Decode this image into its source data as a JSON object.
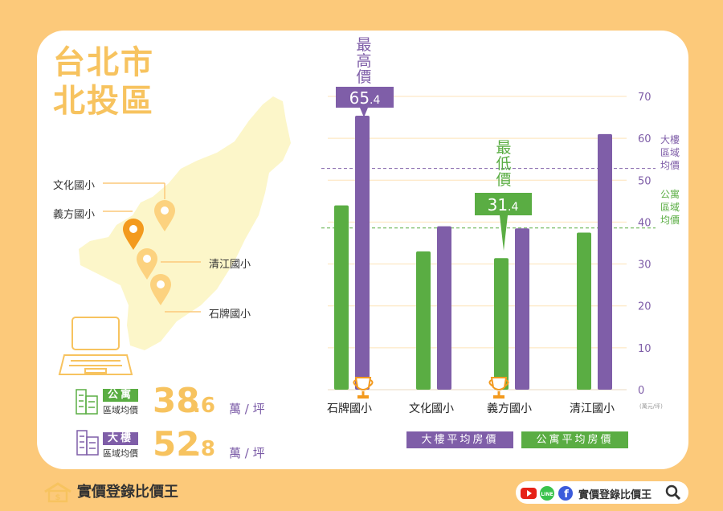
{
  "title": {
    "line1": "台北市",
    "line2": "北投區"
  },
  "map_labels": {
    "wenhua": "文化國小",
    "yifang": "義方國小",
    "qingjiang": "清江國小",
    "shipai": "石牌國小"
  },
  "stats": {
    "apartment": {
      "tag": "公寓",
      "sub": "區域均價",
      "value_int": "38",
      "value_dec": ".6",
      "unit": "萬 / 坪"
    },
    "building": {
      "tag": "大樓",
      "sub": "區域均價",
      "value_int": "52",
      "value_dec": ".8",
      "unit": "萬 / 坪"
    }
  },
  "colors": {
    "green": "#5aad43",
    "purple": "#7f5ea8",
    "yellow": "#f7c35f",
    "orange": "#f39a1e"
  },
  "chart_data": {
    "type": "bar",
    "categories": [
      "石牌國小",
      "文化國小",
      "義方國小",
      "清江國小"
    ],
    "series": [
      {
        "name": "公寓平均房價",
        "values": [
          44,
          33,
          31.4,
          37.5
        ]
      },
      {
        "name": "大樓平均房價",
        "values": [
          65.4,
          39,
          38.5,
          61
        ]
      }
    ],
    "ylim": [
      0,
      70
    ],
    "yticks": [
      "0",
      "10",
      "20",
      "30",
      "40",
      "50",
      "60",
      "70"
    ],
    "unit_label": "(萬元/坪)",
    "ref_lines": [
      {
        "name": "大樓區域均價",
        "value": 52.8,
        "label": [
          "大樓",
          "區域",
          "均價"
        ]
      },
      {
        "name": "公寓區域均價",
        "value": 38.6,
        "label": [
          "公寓",
          "區域",
          "均價"
        ]
      }
    ],
    "annotations": {
      "max": {
        "label": [
          "最",
          "高",
          "價"
        ],
        "value_int": "65",
        "value_dec": ".4"
      },
      "min": {
        "label": [
          "最",
          "低",
          "價"
        ],
        "value_int": "31",
        "value_dec": ".4"
      }
    },
    "legend_position": "bottom"
  },
  "footer": {
    "brand": "實價登錄比價王",
    "brand_right": "實價登錄比價王",
    "line": "LINE",
    "fb": "f"
  }
}
